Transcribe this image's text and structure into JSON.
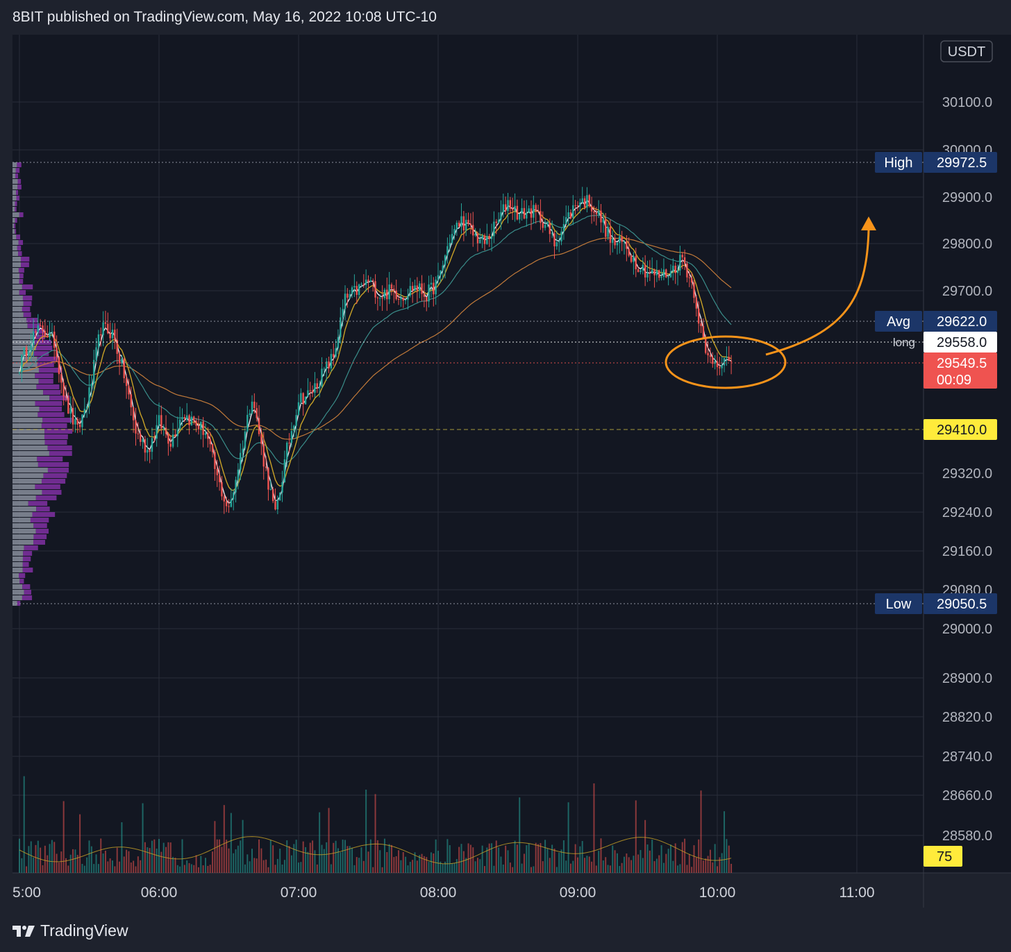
{
  "header": {
    "text": "8BIT published on TradingView.com, May 16, 2022 10:08 UTC-10"
  },
  "footer": {
    "brand": "TradingView",
    "logo_icon": "tradingview-logo-icon"
  },
  "colors": {
    "background": "#131722",
    "frame": "#1e222d",
    "grid": "#2a2e39",
    "up": "#26a69a",
    "down": "#ef5350",
    "ema_fast": "#e9e9f0",
    "ema_mid": "#c9a227",
    "vwap_teal": "#3a8d8a",
    "ma_slow": "#c27a3a",
    "annotation": "#f7931a",
    "poc_line": "#b5a642",
    "label_navy": "#1c3668",
    "label_white": "#ffffff",
    "label_red": "#ef5350",
    "label_yellow": "#ffeb3b"
  },
  "chart_data": {
    "type": "candlestick",
    "title": "",
    "price_axis_unit": "USDT",
    "y_ticks": [
      "30100.0",
      "30000.0",
      "29900.0",
      "29800.0",
      "29700.0",
      "29320.0",
      "29240.0",
      "29160.0",
      "29080.0",
      "29000.0",
      "28900.0",
      "28820.0",
      "28740.0",
      "28660.0",
      "28580.0"
    ],
    "x_ticks": [
      "5:00",
      "06:00",
      "07:00",
      "08:00",
      "09:00",
      "10:00",
      "11:00"
    ],
    "price_labels": [
      {
        "tag": "High",
        "value": "29972.5",
        "style": "navy"
      },
      {
        "tag": "Avg",
        "value": "29622.0",
        "style": "navy"
      },
      {
        "tag": "long",
        "value": "29558.0",
        "style": "white"
      },
      {
        "tag": "",
        "value": "29549.5",
        "sub": "00:09",
        "style": "red"
      },
      {
        "tag": "",
        "value": "29410.0",
        "style": "yellow"
      },
      {
        "tag": "Low",
        "value": "29050.5",
        "style": "navy"
      }
    ],
    "volume_label": "75",
    "price_path": [
      [
        "05:00",
        29540
      ],
      [
        "05:05",
        29600
      ],
      [
        "05:10",
        29620
      ],
      [
        "05:15",
        29590
      ],
      [
        "05:20",
        29460
      ],
      [
        "05:25",
        29400
      ],
      [
        "05:30",
        29480
      ],
      [
        "05:35",
        29620
      ],
      [
        "05:40",
        29610
      ],
      [
        "05:45",
        29520
      ],
      [
        "05:50",
        29400
      ],
      [
        "05:55",
        29360
      ],
      [
        "06:00",
        29420
      ],
      [
        "06:05",
        29380
      ],
      [
        "06:10",
        29440
      ],
      [
        "06:15",
        29420
      ],
      [
        "06:20",
        29400
      ],
      [
        "06:25",
        29300
      ],
      [
        "06:30",
        29230
      ],
      [
        "06:35",
        29350
      ],
      [
        "06:40",
        29480
      ],
      [
        "06:45",
        29340
      ],
      [
        "06:50",
        29220
      ],
      [
        "06:55",
        29360
      ],
      [
        "07:00",
        29470
      ],
      [
        "07:05",
        29480
      ],
      [
        "07:10",
        29520
      ],
      [
        "07:15",
        29560
      ],
      [
        "07:20",
        29680
      ],
      [
        "07:25",
        29700
      ],
      [
        "07:30",
        29720
      ],
      [
        "07:35",
        29690
      ],
      [
        "07:40",
        29700
      ],
      [
        "07:45",
        29690
      ],
      [
        "07:50",
        29710
      ],
      [
        "07:55",
        29690
      ],
      [
        "08:00",
        29720
      ],
      [
        "08:05",
        29810
      ],
      [
        "08:10",
        29850
      ],
      [
        "08:15",
        29820
      ],
      [
        "08:20",
        29800
      ],
      [
        "08:25",
        29840
      ],
      [
        "08:30",
        29890
      ],
      [
        "08:35",
        29860
      ],
      [
        "08:40",
        29870
      ],
      [
        "08:45",
        29850
      ],
      [
        "08:50",
        29800
      ],
      [
        "08:55",
        29850
      ],
      [
        "09:00",
        29890
      ],
      [
        "09:05",
        29890
      ],
      [
        "09:10",
        29850
      ],
      [
        "09:15",
        29800
      ],
      [
        "09:20",
        29800
      ],
      [
        "09:25",
        29760
      ],
      [
        "09:30",
        29740
      ],
      [
        "09:35",
        29730
      ],
      [
        "09:40",
        29740
      ],
      [
        "09:45",
        29770
      ],
      [
        "09:50",
        29700
      ],
      [
        "09:55",
        29560
      ],
      [
        "10:00",
        29550
      ],
      [
        "10:05",
        29550
      ]
    ]
  },
  "annotation": {
    "circle_at": "10:05",
    "arrow_direction": "up"
  }
}
